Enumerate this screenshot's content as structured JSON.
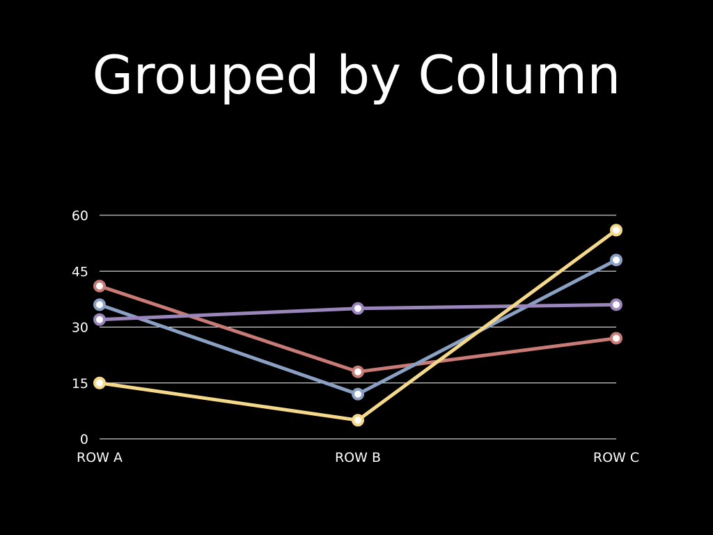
{
  "slide": {
    "title": "Grouped by Column"
  },
  "chart_data": {
    "type": "line",
    "title": "Grouped by Column",
    "categories": [
      "ROW A",
      "ROW B",
      "ROW C"
    ],
    "y_ticks": [
      "0",
      "15",
      "30",
      "45",
      "60"
    ],
    "ylim": [
      0,
      60
    ],
    "grid": true,
    "legend": "none",
    "series": [
      {
        "color": "#c97b76",
        "values": [
          41,
          18,
          27
        ]
      },
      {
        "color": "#8aa1c4",
        "values": [
          36,
          12,
          48
        ]
      },
      {
        "color": "#9b86bb",
        "values": [
          32,
          35,
          36
        ]
      },
      {
        "color": "#f5d98a",
        "values": [
          15,
          5,
          56
        ]
      }
    ]
  }
}
